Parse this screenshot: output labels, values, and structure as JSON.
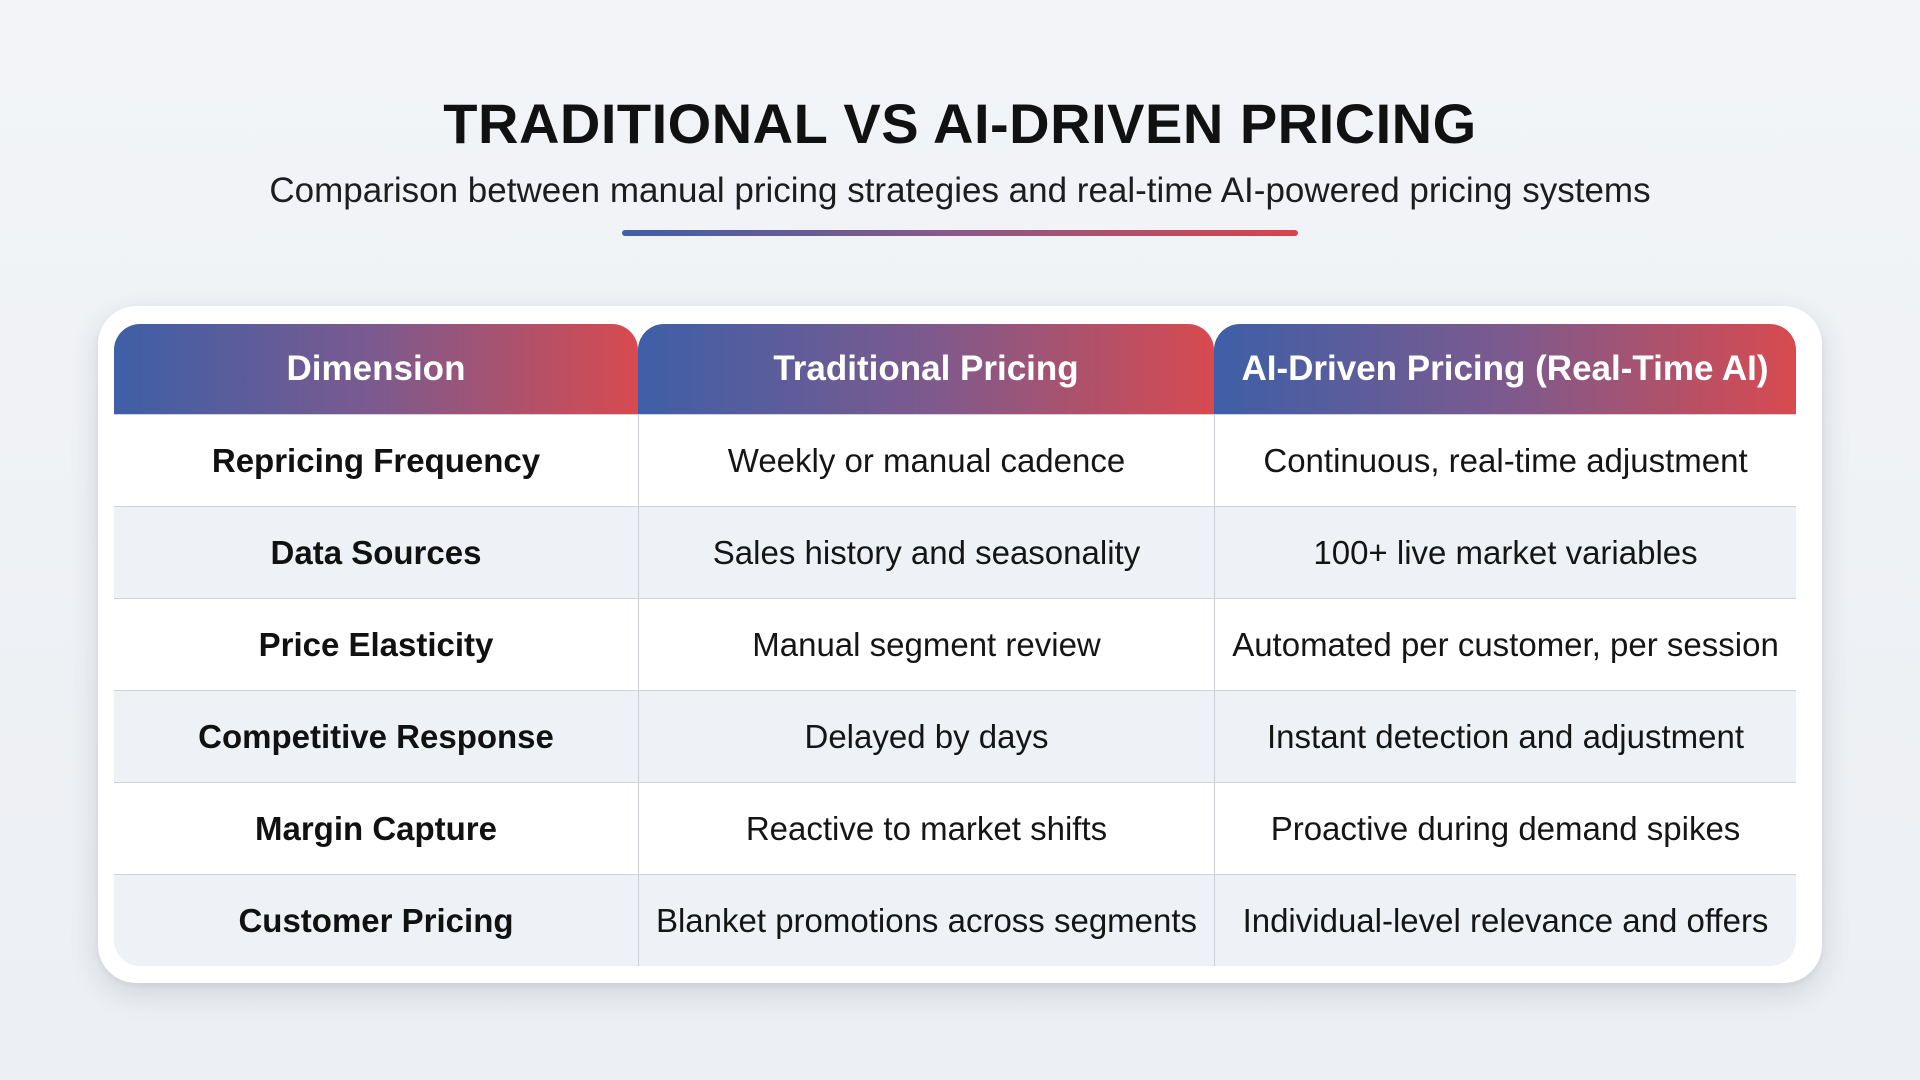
{
  "header": {
    "title": "TRADITIONAL VS AI-DRIVEN PRICING",
    "subtitle": "Comparison between manual pricing strategies and real-time AI-powered pricing systems"
  },
  "colors": {
    "gradient_start": "#3e5fa7",
    "gradient_end": "#d84a4f",
    "background": "#eef1f5"
  },
  "table": {
    "columns": [
      "Dimension",
      "Traditional Pricing",
      "AI-Driven Pricing (Real-Time AI)"
    ],
    "rows": [
      [
        "Repricing Frequency",
        "Weekly or manual cadence",
        "Continuous, real-time adjustment"
      ],
      [
        "Data Sources",
        "Sales history and seasonality",
        "100+ live market variables"
      ],
      [
        "Price Elasticity",
        "Manual segment review",
        "Automated per customer, per session"
      ],
      [
        "Competitive Response",
        "Delayed by days",
        "Instant detection and adjustment"
      ],
      [
        "Margin Capture",
        "Reactive to market shifts",
        "Proactive during demand spikes"
      ],
      [
        "Customer Pricing",
        "Blanket promotions across segments",
        "Individual-level relevance and offers"
      ]
    ]
  }
}
